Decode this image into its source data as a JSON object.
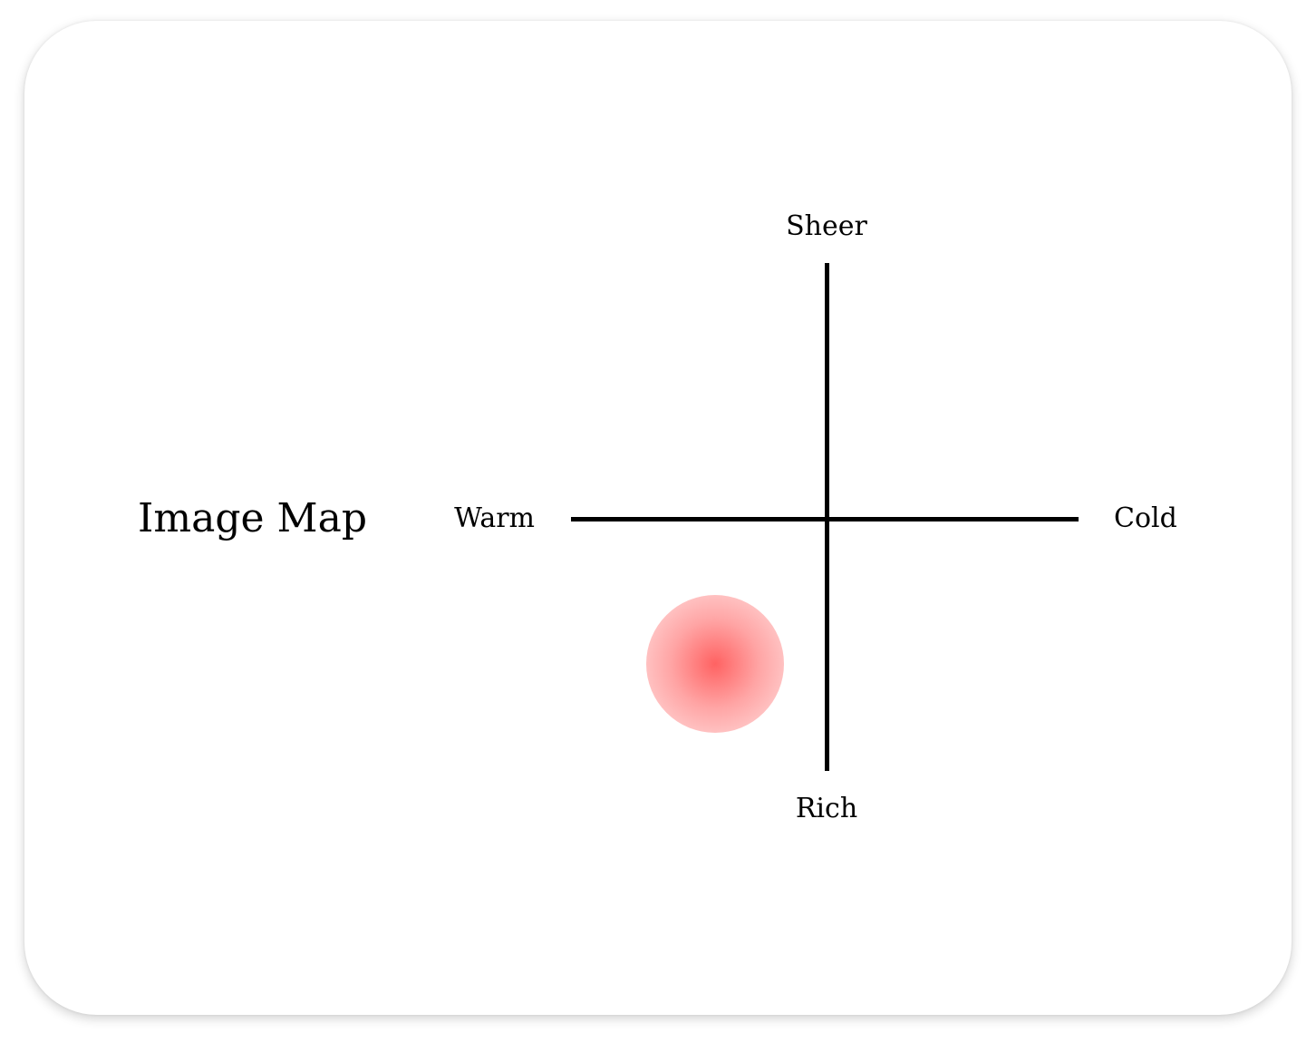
{
  "title": "Image Map",
  "axes": {
    "top": "Sheer",
    "bottom": "Rich",
    "left": "Warm",
    "right": "Cold"
  },
  "marker": {
    "x": -0.44,
    "y": -0.57,
    "color": "#ff5a5a"
  }
}
